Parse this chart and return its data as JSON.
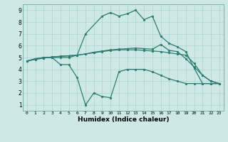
{
  "xlabel": "Humidex (Indice chaleur)",
  "xlim": [
    -0.5,
    23.5
  ],
  "ylim": [
    0.5,
    9.5
  ],
  "xticks": [
    0,
    1,
    2,
    3,
    4,
    5,
    6,
    7,
    8,
    9,
    10,
    11,
    12,
    13,
    14,
    15,
    16,
    17,
    18,
    19,
    20,
    21,
    22,
    23
  ],
  "yticks": [
    1,
    2,
    3,
    4,
    5,
    6,
    7,
    8,
    9
  ],
  "bg_color": "#cde8e5",
  "grid_color": "#aed4cf",
  "line_color": "#2d7d72",
  "lines": [
    {
      "x": [
        0,
        1,
        2,
        3,
        4,
        5,
        6,
        7,
        9,
        10,
        11,
        12,
        13,
        14,
        15,
        16,
        17,
        18,
        19,
        20,
        21,
        22,
        23
      ],
      "y": [
        4.7,
        4.9,
        5.0,
        5.0,
        5.0,
        5.0,
        5.2,
        7.0,
        8.5,
        8.8,
        8.5,
        8.7,
        9.0,
        8.2,
        8.5,
        6.8,
        6.2,
        5.9,
        5.5,
        4.1,
        2.8,
        2.8,
        2.8
      ]
    },
    {
      "x": [
        0,
        1,
        2,
        3,
        4,
        5,
        6,
        7,
        8,
        9,
        10,
        11,
        12,
        13,
        14,
        15,
        16,
        17,
        18,
        19,
        20,
        21,
        22,
        23
      ],
      "y": [
        4.7,
        4.9,
        5.0,
        5.0,
        4.4,
        4.4,
        3.3,
        1.0,
        2.0,
        1.7,
        1.6,
        3.8,
        4.0,
        4.0,
        4.0,
        3.8,
        3.5,
        3.2,
        3.0,
        2.8,
        2.8,
        2.8,
        2.8,
        2.8
      ]
    },
    {
      "x": [
        0,
        1,
        2,
        3,
        4,
        5,
        6,
        7,
        8,
        9,
        10,
        11,
        12,
        13,
        14,
        15,
        16,
        17,
        18,
        19,
        20,
        21,
        22,
        23
      ],
      "y": [
        4.7,
        4.85,
        4.95,
        5.05,
        5.1,
        5.15,
        5.2,
        5.3,
        5.4,
        5.5,
        5.6,
        5.65,
        5.65,
        5.65,
        5.6,
        5.55,
        5.5,
        5.4,
        5.3,
        5.2,
        4.5,
        3.5,
        3.0,
        2.8
      ]
    },
    {
      "x": [
        0,
        1,
        2,
        3,
        4,
        5,
        6,
        7,
        8,
        9,
        10,
        11,
        12,
        13,
        14,
        15,
        16,
        17,
        18,
        19,
        20,
        21,
        22,
        23
      ],
      "y": [
        4.7,
        4.85,
        4.95,
        5.05,
        5.1,
        5.15,
        5.2,
        5.3,
        5.45,
        5.55,
        5.65,
        5.7,
        5.75,
        5.8,
        5.75,
        5.7,
        6.1,
        5.6,
        5.5,
        4.9,
        4.2,
        3.5,
        3.0,
        2.8
      ]
    }
  ]
}
